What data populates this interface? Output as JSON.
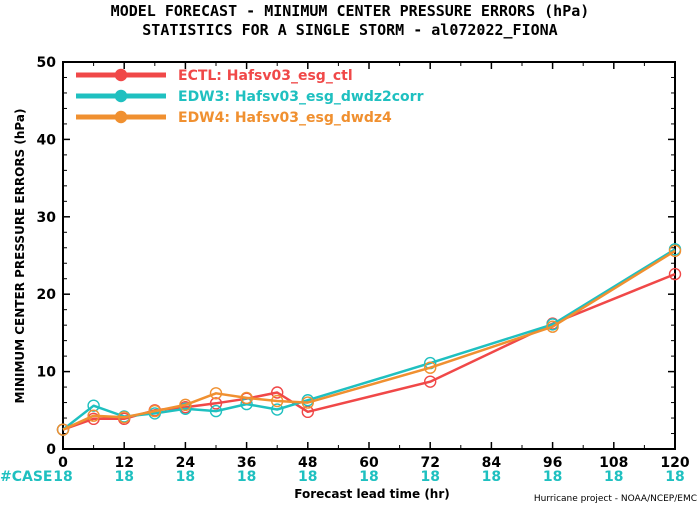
{
  "title_line1": "MODEL FORECAST - MINIMUM CENTER PRESSURE ERRORS (hPa)",
  "title_line2": "STATISTICS FOR A SINGLE STORM - al072022_FIONA",
  "credit": "Hurricane project - NOAA/NCEP/EMC",
  "case_label": "#CASE",
  "case_counts": [
    "18",
    "18",
    "18",
    "18",
    "18",
    "18",
    "18",
    "18",
    "18",
    "18",
    "18"
  ],
  "chart_data": {
    "type": "line",
    "xlabel": "Forecast lead time (hr)",
    "ylabel": "MINIMUM CENTER PRESSURE ERRORS (hPa)",
    "xlim": [
      0,
      120
    ],
    "ylim": [
      0,
      50
    ],
    "x_ticks": [
      0,
      12,
      24,
      36,
      48,
      60,
      72,
      84,
      96,
      108,
      120
    ],
    "y_ticks": [
      0,
      10,
      20,
      30,
      40,
      50
    ],
    "grid": false,
    "legend_position": "top-left",
    "series": [
      {
        "name": "ECTL: Hafsv03_esg_ctl",
        "color": "#f04848",
        "x": [
          0,
          6,
          12,
          18,
          24,
          30,
          36,
          42,
          48,
          72,
          96,
          120
        ],
        "y": [
          2.5,
          3.9,
          3.9,
          5.0,
          5.4,
          5.9,
          6.5,
          7.3,
          4.8,
          8.7,
          16.2,
          22.6
        ]
      },
      {
        "name": "EDW3: Hafsv03_esg_dwdz2corr",
        "color": "#1fc0c0",
        "x": [
          0,
          6,
          12,
          18,
          24,
          30,
          36,
          42,
          48,
          72,
          96,
          120
        ],
        "y": [
          2.5,
          5.6,
          4.2,
          4.6,
          5.2,
          4.9,
          5.8,
          5.1,
          6.3,
          11.1,
          16.1,
          25.8
        ]
      },
      {
        "name": "EDW4: Hafsv03_esg_dwdz4",
        "color": "#f09030",
        "x": [
          0,
          6,
          12,
          18,
          24,
          30,
          36,
          42,
          48,
          72,
          96,
          120
        ],
        "y": [
          2.5,
          4.3,
          4.1,
          4.9,
          5.7,
          7.2,
          6.6,
          6.2,
          6.0,
          10.5,
          15.8,
          25.6
        ]
      }
    ]
  }
}
